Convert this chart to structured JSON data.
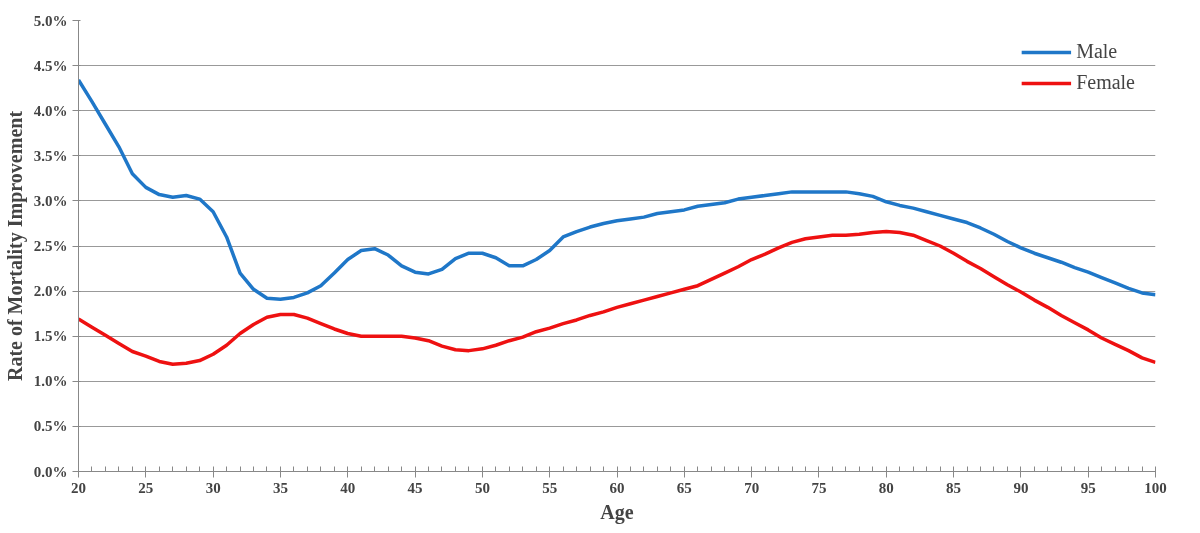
{
  "chart_data": {
    "type": "line",
    "xlabel": "Age",
    "ylabel": "Rate of Mortality Improvement",
    "x": [
      20,
      21,
      22,
      23,
      24,
      25,
      26,
      27,
      28,
      29,
      30,
      31,
      32,
      33,
      34,
      35,
      36,
      37,
      38,
      39,
      40,
      41,
      42,
      43,
      44,
      45,
      46,
      47,
      48,
      49,
      50,
      51,
      52,
      53,
      54,
      55,
      56,
      57,
      58,
      59,
      60,
      61,
      62,
      63,
      64,
      65,
      66,
      67,
      68,
      69,
      70,
      71,
      72,
      73,
      74,
      75,
      76,
      77,
      78,
      79,
      80,
      81,
      82,
      83,
      84,
      85,
      86,
      87,
      88,
      89,
      90,
      91,
      92,
      93,
      94,
      95,
      96,
      97,
      98,
      99,
      100
    ],
    "series": [
      {
        "name": "Male",
        "color": "#1f77c8",
        "values": [
          4.34,
          4.1,
          3.85,
          3.6,
          3.3,
          3.15,
          3.07,
          3.04,
          3.06,
          3.02,
          2.88,
          2.6,
          2.2,
          2.02,
          1.92,
          1.91,
          1.93,
          1.98,
          2.06,
          2.2,
          2.35,
          2.45,
          2.47,
          2.4,
          2.28,
          2.21,
          2.19,
          2.24,
          2.36,
          2.42,
          2.42,
          2.37,
          2.28,
          2.28,
          2.35,
          2.45,
          2.6,
          2.66,
          2.71,
          2.75,
          2.78,
          2.8,
          2.82,
          2.86,
          2.88,
          2.9,
          2.94,
          2.96,
          2.98,
          3.02,
          3.04,
          3.06,
          3.08,
          3.1,
          3.1,
          3.1,
          3.1,
          3.1,
          3.08,
          3.05,
          2.99,
          2.95,
          2.92,
          2.88,
          2.84,
          2.8,
          2.76,
          2.7,
          2.63,
          2.55,
          2.48,
          2.42,
          2.37,
          2.32,
          2.26,
          2.21,
          2.15,
          2.09,
          2.03,
          1.98,
          1.96
        ]
      },
      {
        "name": "Female",
        "color": "#ee1111",
        "values": [
          1.69,
          1.6,
          1.51,
          1.42,
          1.33,
          1.28,
          1.22,
          1.19,
          1.2,
          1.23,
          1.3,
          1.4,
          1.53,
          1.63,
          1.71,
          1.74,
          1.74,
          1.7,
          1.64,
          1.58,
          1.53,
          1.5,
          1.5,
          1.5,
          1.5,
          1.48,
          1.45,
          1.39,
          1.35,
          1.34,
          1.36,
          1.4,
          1.45,
          1.49,
          1.55,
          1.59,
          1.64,
          1.68,
          1.73,
          1.77,
          1.82,
          1.86,
          1.9,
          1.94,
          1.98,
          2.02,
          2.06,
          2.13,
          2.2,
          2.27,
          2.35,
          2.41,
          2.48,
          2.54,
          2.58,
          2.6,
          2.62,
          2.62,
          2.63,
          2.65,
          2.66,
          2.65,
          2.62,
          2.56,
          2.5,
          2.42,
          2.33,
          2.25,
          2.16,
          2.07,
          1.99,
          1.9,
          1.82,
          1.73,
          1.65,
          1.57,
          1.48,
          1.41,
          1.34,
          1.26,
          1.21
        ]
      }
    ],
    "xlim": [
      20,
      100
    ],
    "xticks": [
      20,
      25,
      30,
      35,
      40,
      45,
      50,
      55,
      60,
      65,
      70,
      75,
      80,
      85,
      90,
      95,
      100
    ],
    "ylim": [
      0,
      5
    ],
    "yticks": [
      {
        "value": 0,
        "label": "0.0%"
      },
      {
        "value": 0.5,
        "label": "0.5%"
      },
      {
        "value": 1,
        "label": "1.0%"
      },
      {
        "value": 1.5,
        "label": "1.5%"
      },
      {
        "value": 2,
        "label": "2.0%"
      },
      {
        "value": 2.5,
        "label": "2.5%"
      },
      {
        "value": 3,
        "label": "3.0%"
      },
      {
        "value": 3.5,
        "label": "3.5%"
      },
      {
        "value": 4,
        "label": "4.0%"
      },
      {
        "value": 4.5,
        "label": "4.5%"
      },
      {
        "value": 5,
        "label": "5.0%"
      }
    ],
    "grid": "y",
    "legend": "top right",
    "marker": "none",
    "line_style": "solid"
  }
}
